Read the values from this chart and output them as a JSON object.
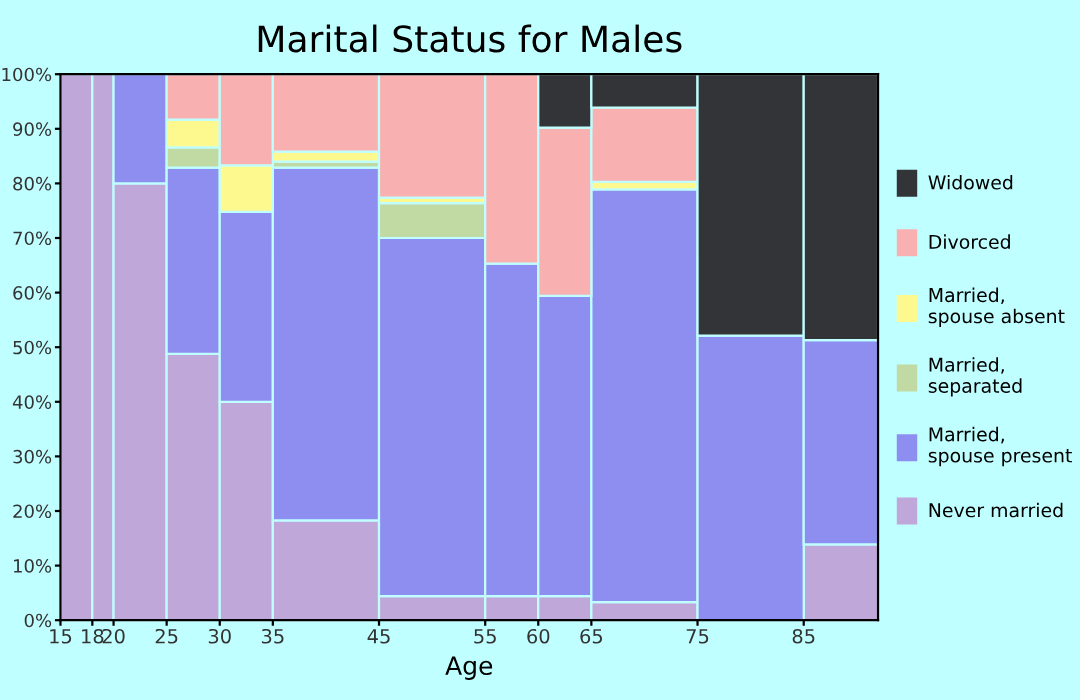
{
  "chart_data": {
    "type": "bar",
    "stacked": true,
    "title": "Marital Status for Males",
    "xlabel": "Age",
    "x": [
      16.5,
      19,
      22.5,
      27.5,
      32.5,
      40,
      50,
      57.5,
      62.5,
      70,
      80,
      88.5
    ],
    "xlim": [
      15,
      92
    ],
    "xticks": [
      15,
      18,
      20,
      25,
      30,
      35,
      45,
      55,
      60,
      65,
      75,
      85
    ],
    "ylim": [
      0,
      100
    ],
    "yticks": [
      {
        "value": 0,
        "label": "0%"
      },
      {
        "value": 10,
        "label": "10%"
      },
      {
        "value": 20,
        "label": "20%"
      },
      {
        "value": 30,
        "label": "30%"
      },
      {
        "value": 40,
        "label": "40%"
      },
      {
        "value": 50,
        "label": "50%"
      },
      {
        "value": 60,
        "label": "60%"
      },
      {
        "value": 70,
        "label": "70%"
      },
      {
        "value": 80,
        "label": "80%"
      },
      {
        "value": 90,
        "label": "90%"
      },
      {
        "value": 100,
        "label": "100%"
      }
    ],
    "grid": false,
    "legend": "right",
    "series": [
      {
        "name": "Never married",
        "color": "#bfa7da",
        "values": [
          100,
          100,
          80,
          48.8,
          40,
          18.3,
          4.4,
          4.4,
          4.4,
          3.3,
          null,
          13.9
        ]
      },
      {
        "name": "Married,\nspouse present",
        "color": "#8e8ef1",
        "values": [
          null,
          null,
          20,
          34.1,
          34.8,
          64.6,
          65.6,
          60.9,
          55,
          75.6,
          52.1,
          37.4
        ]
      },
      {
        "name": "Married,\nseparated",
        "color": "#c1d9a3",
        "values": [
          null,
          null,
          null,
          3.7,
          null,
          1.1,
          6.4,
          null,
          null,
          null,
          null,
          null
        ]
      },
      {
        "name": "Married,\nspouse absent",
        "color": "#fdf98f",
        "values": [
          null,
          null,
          null,
          5.1,
          8.5,
          1.8,
          1,
          null,
          null,
          1.4,
          null,
          null
        ]
      },
      {
        "name": "Divorced",
        "color": "#f9b0b0",
        "values": [
          null,
          null,
          null,
          8.3,
          16.7,
          14.2,
          22.6,
          34.7,
          30.8,
          13.6,
          null,
          null
        ]
      },
      {
        "name": "Widowed",
        "color": "#333438",
        "values": [
          null,
          null,
          null,
          null,
          null,
          null,
          null,
          null,
          9.8,
          6.1,
          47.9,
          48.7
        ]
      }
    ]
  }
}
